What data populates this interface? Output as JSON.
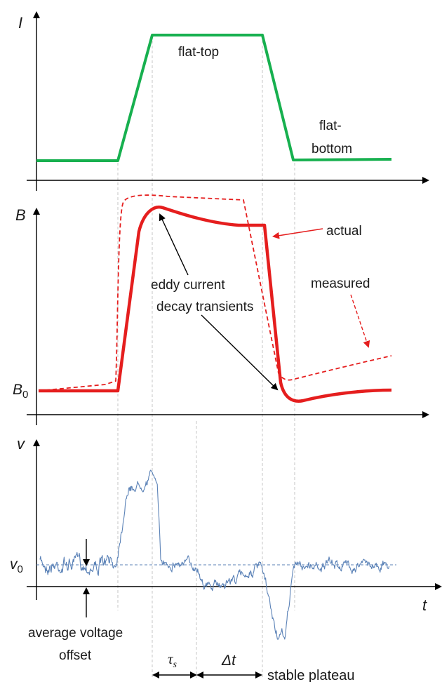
{
  "panel_current": {
    "axis_label": "I",
    "annotations": {
      "flat_top": "flat-top",
      "flat_bottom_line1": "flat-",
      "flat_bottom_line2": "bottom"
    }
  },
  "panel_field": {
    "axis_label": "B",
    "baseline_label": "B",
    "baseline_sub": "0",
    "annotations": {
      "actual": "actual",
      "measured": "measured",
      "eddy_line1": "eddy current",
      "eddy_line2": "decay transients"
    }
  },
  "panel_voltage": {
    "axis_label": "v",
    "offset_label": "v",
    "offset_sub": "0",
    "time_label": "t",
    "annotations": {
      "offset_line1": "average voltage",
      "offset_line2": "offset",
      "tau_main": "τ",
      "tau_sub": "s",
      "delta_t": "Δt",
      "stable_plateau": "stable plateau"
    }
  },
  "colors": {
    "current": "#17b04f",
    "field": "#e51e1e",
    "voltage": "#5b82b7",
    "axis": "#000000",
    "guide": "#b9b9b9"
  }
}
